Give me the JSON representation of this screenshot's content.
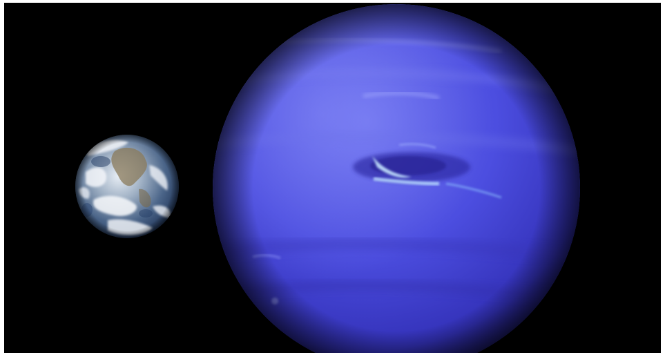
{
  "scene": {
    "subjects": [
      {
        "name": "earth"
      },
      {
        "name": "neptune"
      }
    ],
    "colors": {
      "space": "#000000",
      "earth_ocean": "#2d4a78",
      "earth_cloud": "#f2f4f8",
      "neptune_base": "#4a4ad8",
      "neptune_highlight": "#7f86f2",
      "neptune_shadow": "#1a1670",
      "storm_cloud": "#b9dcff"
    }
  }
}
